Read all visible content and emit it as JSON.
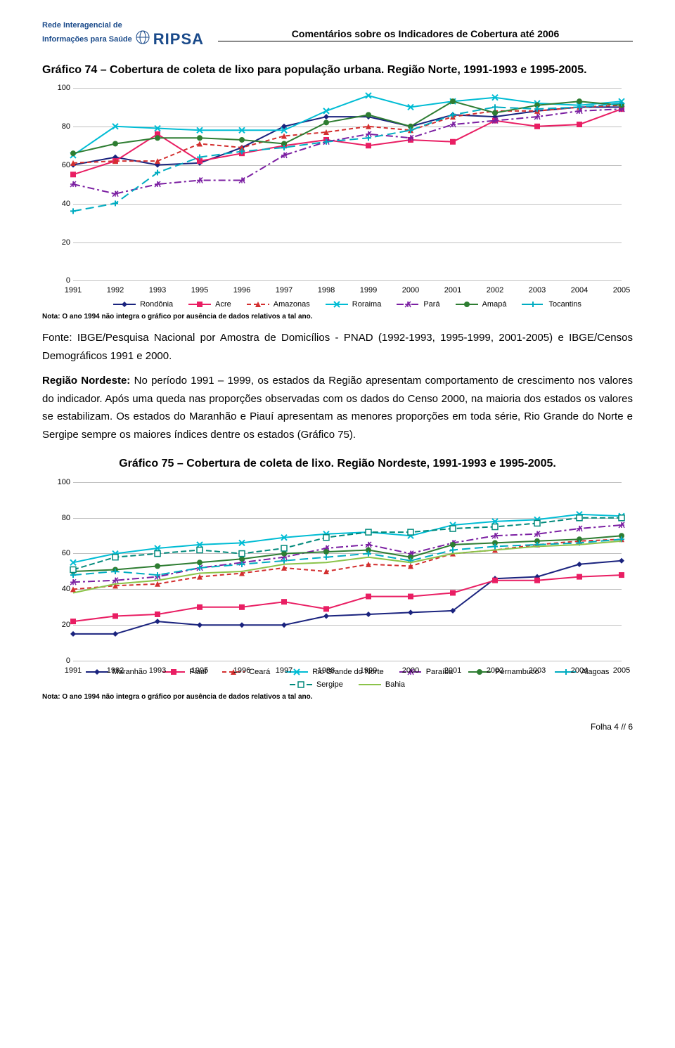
{
  "header": {
    "logo_line1": "Rede Interagencial de",
    "logo_line2": "Informações para Saúde",
    "logo_acronym": "RIPSA",
    "subtitle": "Comentários sobre os Indicadores de Cobertura até 2006"
  },
  "footer": {
    "text": "Folha 4 // 6"
  },
  "chart74": {
    "title": "Gráfico 74 – Cobertura de coleta de lixo para população urbana. Região Norte, 1991-1993 e 1995-2005.",
    "type": "line",
    "years": [
      1991,
      1992,
      1993,
      1995,
      1996,
      1997,
      1998,
      1999,
      2000,
      2001,
      2002,
      2003,
      2004,
      2005
    ],
    "ylim": [
      0,
      100
    ],
    "ytick_step": 20,
    "grid_color": "#c0c0c0",
    "background_color": "#ffffff",
    "axis_fontsize": 11,
    "note": "Nota: O ano 1994 não integra o gráfico por ausência de dados relativos a tal ano.",
    "source": "Fonte: IBGE/Pesquisa Nacional por Amostra de Domicílios - PNAD (1992-1993, 1995-1999, 2001-2005) e IBGE/Censos Demográficos 1991 e 2000.",
    "series": [
      {
        "name": "Rondônia",
        "color": "#1a237e",
        "marker": "diamond",
        "dash": "",
        "values": [
          60,
          64,
          60,
          61,
          69,
          80,
          85,
          85,
          80,
          86,
          85,
          88,
          90,
          90
        ]
      },
      {
        "name": "Acre",
        "color": "#e91e63",
        "marker": "square",
        "dash": "",
        "values": [
          55,
          62,
          76,
          62,
          66,
          70,
          73,
          70,
          73,
          72,
          83,
          80,
          81,
          89
        ]
      },
      {
        "name": "Amazonas",
        "color": "#d32f2f",
        "marker": "triangle",
        "dash": "6,4",
        "values": [
          61,
          62,
          62,
          71,
          69,
          75,
          77,
          80,
          78,
          85,
          88,
          88,
          90,
          91
        ]
      },
      {
        "name": "Roraima",
        "color": "#00bcd4",
        "marker": "x",
        "dash": "",
        "values": [
          65,
          80,
          79,
          78,
          78,
          78,
          88,
          96,
          90,
          93,
          95,
          92,
          91,
          93
        ]
      },
      {
        "name": "Pará",
        "color": "#7b1fa2",
        "marker": "star",
        "dash": "10,4,3,4",
        "values": [
          50,
          45,
          50,
          52,
          52,
          65,
          72,
          76,
          74,
          81,
          83,
          85,
          88,
          89
        ]
      },
      {
        "name": "Amapá",
        "color": "#2e7d32",
        "marker": "circle",
        "dash": "",
        "values": [
          66,
          71,
          74,
          74,
          73,
          71,
          82,
          86,
          80,
          93,
          87,
          91,
          93,
          91
        ]
      },
      {
        "name": "Tocantins",
        "color": "#00acc1",
        "marker": "plus",
        "dash": "12,6",
        "values": [
          36,
          40,
          56,
          64,
          67,
          69,
          72,
          74,
          78,
          86,
          90,
          89,
          90,
          92
        ]
      }
    ]
  },
  "paragraph": {
    "lead": "Região Nordeste:",
    "text": "No período 1991 – 1999, os estados da Região apresentam comportamento de crescimento nos valores do indicador. Após uma queda nas proporções observadas com os dados do Censo 2000, na maioria dos estados os valores se estabilizam. Os estados do Maranhão e Piauí apresentam as menores proporções em toda série, Rio Grande do Norte e Sergipe sempre os maiores índices dentre os estados (Gráfico 75)."
  },
  "chart75": {
    "title": "Gráfico 75 – Cobertura de coleta de lixo. Região Nordeste, 1991-1993 e 1995-2005.",
    "type": "line",
    "years": [
      1991,
      1992,
      1993,
      1995,
      1996,
      1997,
      1998,
      1999,
      2000,
      2001,
      2002,
      2003,
      2004,
      2005
    ],
    "ylim": [
      0,
      100
    ],
    "ytick_step": 20,
    "grid_color": "#c0c0c0",
    "background_color": "#ffffff",
    "axis_fontsize": 11,
    "note": "Nota: O ano 1994 não integra o gráfico por ausência de dados relativos a tal ano.",
    "series": [
      {
        "name": "Maranhão",
        "color": "#1a237e",
        "marker": "diamond",
        "dash": "",
        "values": [
          15,
          15,
          22,
          20,
          20,
          20,
          25,
          26,
          27,
          28,
          46,
          47,
          54,
          56
        ]
      },
      {
        "name": "Piauí",
        "color": "#e91e63",
        "marker": "square",
        "dash": "",
        "values": [
          22,
          25,
          26,
          30,
          30,
          33,
          29,
          36,
          36,
          38,
          45,
          45,
          47,
          48
        ]
      },
      {
        "name": "Ceará",
        "color": "#d32f2f",
        "marker": "triangle",
        "dash": "6,4",
        "values": [
          40,
          42,
          43,
          47,
          49,
          52,
          50,
          54,
          53,
          60,
          62,
          65,
          67,
          68
        ]
      },
      {
        "name": "Rio Grande do Norte",
        "color": "#00bcd4",
        "marker": "x",
        "dash": "",
        "values": [
          55,
          60,
          63,
          65,
          66,
          69,
          71,
          72,
          70,
          76,
          78,
          79,
          82,
          81
        ]
      },
      {
        "name": "Paraíba",
        "color": "#7b1fa2",
        "marker": "star",
        "dash": "10,4,3,4",
        "values": [
          44,
          45,
          47,
          52,
          55,
          58,
          63,
          65,
          60,
          66,
          70,
          71,
          74,
          76
        ]
      },
      {
        "name": "Pernambuco",
        "color": "#2e7d32",
        "marker": "circle",
        "dash": "",
        "values": [
          50,
          51,
          53,
          55,
          57,
          60,
          61,
          62,
          58,
          65,
          66,
          67,
          68,
          70
        ]
      },
      {
        "name": "Alagoas",
        "color": "#00acc1",
        "marker": "plus",
        "dash": "12,6",
        "values": [
          48,
          50,
          48,
          52,
          54,
          56,
          58,
          60,
          56,
          62,
          64,
          65,
          66,
          68
        ]
      },
      {
        "name": "Sergipe",
        "color": "#00897b",
        "marker": "square-open",
        "dash": "8,4",
        "values": [
          51,
          58,
          60,
          62,
          60,
          63,
          69,
          72,
          72,
          74,
          75,
          77,
          80,
          80
        ]
      },
      {
        "name": "Bahia",
        "color": "#8bc34a",
        "marker": "none",
        "dash": "",
        "values": [
          38,
          43,
          45,
          49,
          50,
          54,
          55,
          58,
          55,
          60,
          62,
          64,
          65,
          67
        ]
      }
    ]
  }
}
